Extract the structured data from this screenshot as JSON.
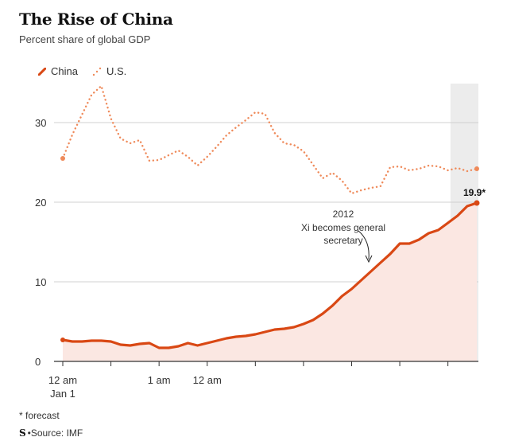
{
  "header": {
    "title": "The Rise of China",
    "subtitle": "Percent share of global GDP"
  },
  "footnotes": {
    "forecast": "* forecast",
    "logo": "S",
    "source": "•Source: IMF"
  },
  "colors": {
    "china": "#d94814",
    "us": "#ef8a5a",
    "area": "#fbe7e2",
    "forecast_band": "#ececec"
  },
  "chart_data": {
    "type": "line",
    "title": "The Rise of China",
    "subtitle": "Percent share of global GDP",
    "ylim": [
      0,
      35
    ],
    "yticks": [
      0,
      10,
      20,
      30
    ],
    "x_tick_labels": [
      {
        "label": "12 am",
        "sub": "Jan 1",
        "index": 0
      },
      {
        "label": "1 am",
        "index": 10
      },
      {
        "label": "12 am",
        "index": 15
      }
    ],
    "legend": [
      "China",
      "U.S."
    ],
    "legend_position": "top-left",
    "forecast_from_index": 42,
    "series": [
      {
        "name": "China",
        "style": "solid",
        "area": true,
        "values": [
          2.7,
          2.5,
          2.5,
          2.6,
          2.6,
          2.5,
          2.1,
          2.0,
          2.2,
          2.3,
          1.7,
          1.7,
          1.9,
          2.3,
          2.0,
          2.3,
          2.6,
          2.9,
          3.1,
          3.2,
          3.4,
          3.7,
          4.0,
          4.1,
          4.3,
          4.7,
          5.2,
          6.0,
          7.0,
          8.2,
          9.1,
          10.2,
          11.3,
          12.4,
          13.5,
          14.8,
          14.8,
          15.3,
          16.1,
          16.5,
          17.4,
          18.3,
          19.5,
          19.9
        ]
      },
      {
        "name": "U.S.",
        "style": "dotted",
        "area": false,
        "values": [
          25.5,
          28.5,
          31.0,
          33.5,
          34.6,
          30.5,
          28.0,
          27.4,
          27.8,
          25.2,
          25.3,
          25.9,
          26.5,
          25.7,
          24.6,
          25.7,
          27.0,
          28.4,
          29.4,
          30.3,
          31.3,
          31.1,
          28.7,
          27.4,
          27.2,
          26.4,
          24.7,
          23.0,
          23.7,
          22.7,
          21.1,
          21.5,
          21.8,
          22.0,
          24.4,
          24.5,
          24.0,
          24.2,
          24.6,
          24.5,
          24.0,
          24.3,
          23.9,
          24.2
        ]
      }
    ],
    "annotations": [
      {
        "text": "2012",
        "index": 30
      },
      {
        "text": "Xi becomes general",
        "index": 30
      },
      {
        "text": "secretary",
        "index": 30
      },
      {
        "text": "19.9*",
        "index": 43
      }
    ]
  }
}
